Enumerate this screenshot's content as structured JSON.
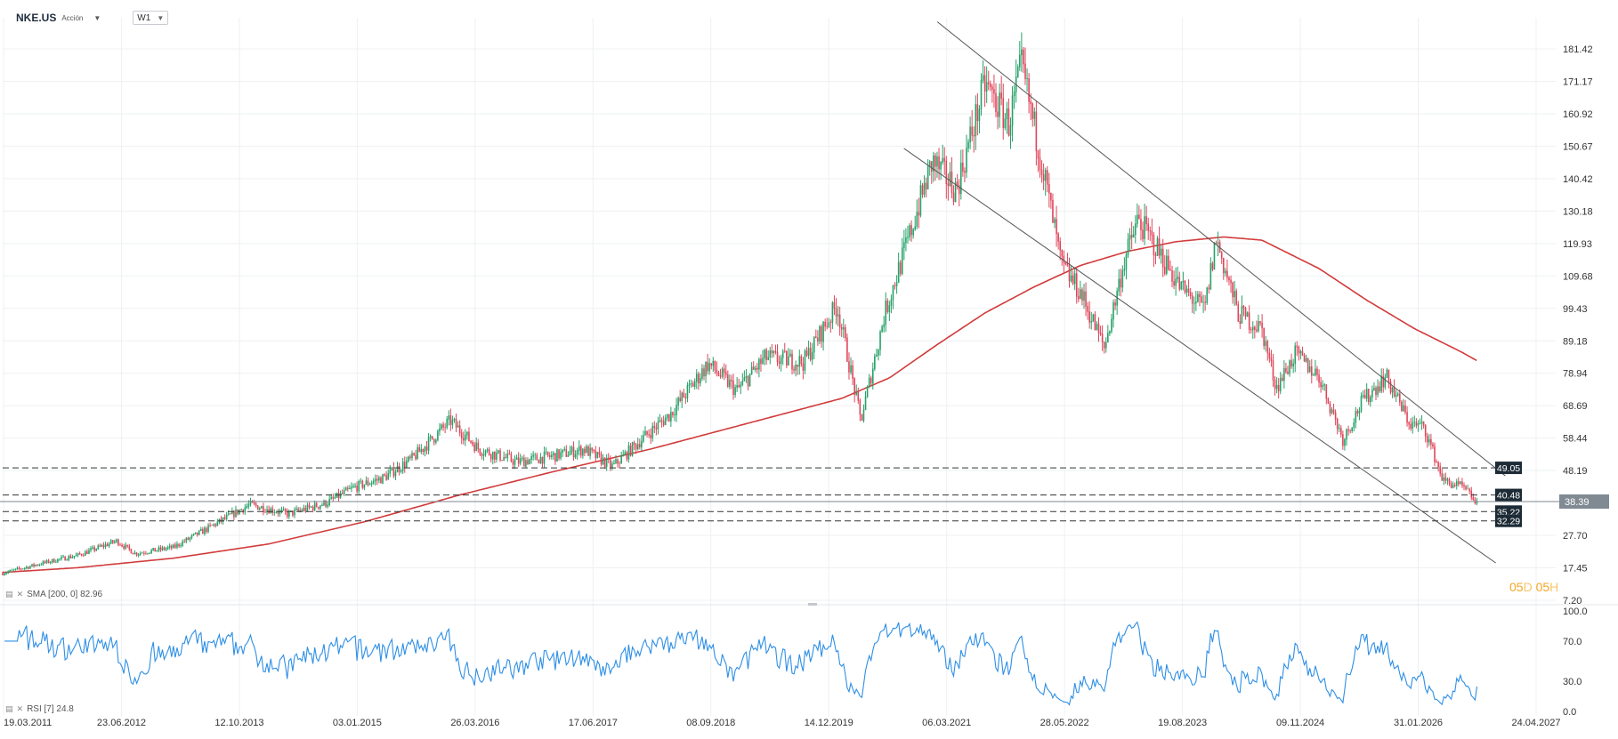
{
  "header": {
    "symbol": "NKE.US",
    "instrument_type": "Acción",
    "interval": "W1"
  },
  "legends": {
    "sma": "SMA [200, 0] 82.96",
    "rsi": "RSI [7] 24.8"
  },
  "countdown": {
    "days": "05",
    "day_unit": "D",
    "hours": "05",
    "hour_unit": "H"
  },
  "colors": {
    "up": "#26a269",
    "down": "#e0465a",
    "sma": "#d23b3b",
    "rsi": "#2e8fe6",
    "last_price_bg": "#808a93",
    "level_bg": "#1d2b36"
  },
  "chart_data": [
    {
      "type": "candlestick",
      "timeframe": "weekly",
      "x_ticks": [
        "19.03.2011",
        "23.06.2012",
        "12.10.2013",
        "03.01.2015",
        "26.03.2016",
        "17.06.2017",
        "08.09.2018",
        "14.12.2019",
        "06.03.2021",
        "28.05.2022",
        "19.08.2023",
        "09.11.2024",
        "31.01.2026",
        "24.04.2027"
      ],
      "y_ticks": [
        181.42,
        171.17,
        160.92,
        150.67,
        140.42,
        130.18,
        119.93,
        109.68,
        99.43,
        89.18,
        78.94,
        68.69,
        58.44,
        48.19,
        27.7,
        17.45,
        7.2
      ],
      "ylim": [
        7.2,
        181.42
      ],
      "grid": true,
      "price_path": [
        [
          2011.21,
          15.8
        ],
        [
          2011.7,
          19.5
        ],
        [
          2012.0,
          21.5
        ],
        [
          2012.4,
          26.0
        ],
        [
          2012.6,
          22.0
        ],
        [
          2013.0,
          24.0
        ],
        [
          2013.3,
          29.0
        ],
        [
          2013.8,
          37.5
        ],
        [
          2014.2,
          34.5
        ],
        [
          2014.6,
          38.0
        ],
        [
          2014.9,
          43.0
        ],
        [
          2015.2,
          46.0
        ],
        [
          2015.5,
          52.0
        ],
        [
          2015.9,
          64.0
        ],
        [
          2016.2,
          55.0
        ],
        [
          2016.6,
          51.0
        ],
        [
          2017.0,
          53.0
        ],
        [
          2017.3,
          55.0
        ],
        [
          2017.6,
          49.5
        ],
        [
          2017.9,
          58.0
        ],
        [
          2018.2,
          66.0
        ],
        [
          2018.6,
          82.0
        ],
        [
          2018.9,
          73.5
        ],
        [
          2019.2,
          84.0
        ],
        [
          2019.6,
          82.5
        ],
        [
          2019.95,
          100.5
        ],
        [
          2020.2,
          64.0
        ],
        [
          2020.45,
          98.0
        ],
        [
          2020.75,
          126.5
        ],
        [
          2020.95,
          146.0
        ],
        [
          2021.2,
          137.0
        ],
        [
          2021.5,
          170.5
        ],
        [
          2021.75,
          158.0
        ],
        [
          2021.88,
          176.0
        ],
        [
          2022.1,
          145.0
        ],
        [
          2022.3,
          113.0
        ],
        [
          2022.5,
          104.5
        ],
        [
          2022.75,
          87.0
        ],
        [
          2022.95,
          113.5
        ],
        [
          2023.1,
          127.5
        ],
        [
          2023.3,
          118.5
        ],
        [
          2023.55,
          106.0
        ],
        [
          2023.8,
          99.0
        ],
        [
          2023.92,
          121.5
        ],
        [
          2024.15,
          98.0
        ],
        [
          2024.4,
          93.0
        ],
        [
          2024.55,
          74.5
        ],
        [
          2024.75,
          85.0
        ],
        [
          2025.0,
          78.0
        ],
        [
          2025.25,
          58.0
        ],
        [
          2025.45,
          70.0
        ],
        [
          2025.7,
          78.0
        ],
        [
          2025.95,
          63.0
        ],
        [
          2026.1,
          62.0
        ],
        [
          2026.3,
          45.0
        ],
        [
          2026.5,
          43.0
        ],
        [
          2026.65,
          38.39
        ]
      ],
      "sma_200_path": [
        [
          2011.21,
          16.0
        ],
        [
          2012.0,
          17.5
        ],
        [
          2013.0,
          20.5
        ],
        [
          2014.0,
          25.0
        ],
        [
          2015.0,
          32.0
        ],
        [
          2016.0,
          40.5
        ],
        [
          2017.0,
          48.0
        ],
        [
          2018.0,
          55.0
        ],
        [
          2019.0,
          63.0
        ],
        [
          2020.0,
          71.0
        ],
        [
          2020.5,
          77.5
        ],
        [
          2021.0,
          88.0
        ],
        [
          2021.5,
          98.0
        ],
        [
          2022.0,
          106.0
        ],
        [
          2022.5,
          113.0
        ],
        [
          2023.0,
          117.5
        ],
        [
          2023.5,
          120.5
        ],
        [
          2024.0,
          122.0
        ],
        [
          2024.4,
          121.0
        ],
        [
          2025.0,
          112.0
        ],
        [
          2025.5,
          102.0
        ],
        [
          2026.0,
          93.0
        ],
        [
          2026.5,
          85.5
        ],
        [
          2026.65,
          82.96
        ]
      ],
      "sma_last_value": 82.96,
      "channel_lines": [
        {
          "from": [
            2021.0,
            190.0
          ],
          "to": [
            2026.95,
            46.5
          ]
        },
        {
          "from": [
            2020.65,
            150.0
          ],
          "to": [
            2026.85,
            19.0
          ]
        }
      ],
      "horizontal_levels": [
        {
          "value": 49.05,
          "label": "49.05",
          "style": "dashed"
        },
        {
          "value": 40.48,
          "label": "40.48",
          "style": "dashed"
        },
        {
          "value": 35.22,
          "label": "35.22",
          "style": "dashed"
        },
        {
          "value": 32.29,
          "label": "32.29",
          "style": "dashed"
        }
      ],
      "last_price": {
        "value": 38.39,
        "label": "38.39"
      }
    },
    {
      "type": "line",
      "name": "RSI [7]",
      "y_ticks": [
        "100.0",
        "70.0",
        "30.0",
        "0.0"
      ],
      "ylim": [
        0,
        100
      ],
      "last_value": 24.8
    }
  ]
}
